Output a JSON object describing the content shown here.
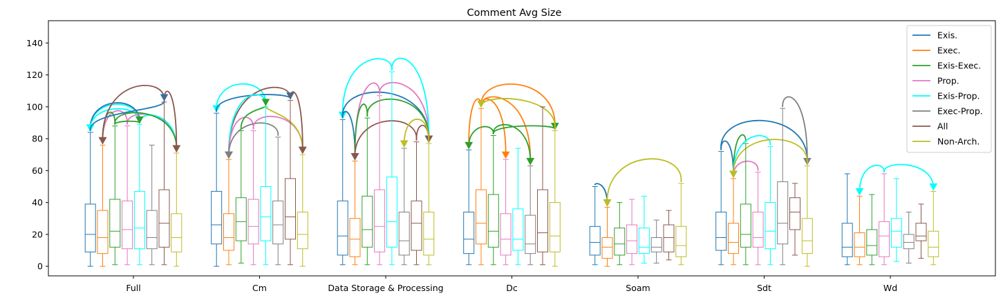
{
  "chart_data": {
    "type": "box",
    "title": "Comment Avg Size",
    "xlabel": "",
    "ylabel": "",
    "ylim": [
      -6,
      154
    ],
    "yticks": [
      0,
      20,
      40,
      60,
      80,
      100,
      120,
      140
    ],
    "grid": false,
    "legend_position": "top-right",
    "categories": [
      "Full",
      "Cm",
      "Data Storage & Processing",
      "Dc",
      "Soam",
      "Sdt",
      "Wd"
    ],
    "series": [
      {
        "name": "Exis.",
        "color": "#1f77b4",
        "boxes": [
          [
            0,
            9,
            20,
            39,
            84
          ],
          [
            0,
            14,
            26,
            47,
            96
          ],
          [
            1,
            7,
            19,
            41,
            92
          ],
          [
            1,
            8,
            17,
            34,
            73
          ],
          [
            1,
            7,
            15,
            25,
            50
          ],
          [
            1,
            10,
            18,
            34,
            72
          ],
          [
            1,
            6,
            12,
            27,
            58
          ]
        ]
      },
      {
        "name": "Exec.",
        "color": "#ff7f0e",
        "boxes": [
          [
            0,
            8,
            18,
            35,
            76
          ],
          [
            1,
            10,
            18,
            33,
            67
          ],
          [
            1,
            6,
            17,
            30,
            66
          ],
          [
            1,
            14,
            27,
            48,
            99
          ],
          [
            0,
            5,
            12,
            18,
            37
          ],
          [
            1,
            8,
            15,
            27,
            55
          ],
          [
            1,
            6,
            12,
            21,
            44
          ]
        ]
      },
      {
        "name": "Exis-Exec.",
        "color": "#2ca02c",
        "boxes": [
          [
            1,
            12,
            22,
            42,
            88
          ],
          [
            2,
            16,
            28,
            43,
            85
          ],
          [
            1,
            12,
            23,
            44,
            93
          ],
          [
            1,
            12,
            22,
            45,
            82
          ],
          [
            1,
            7,
            14,
            24,
            40
          ],
          [
            1,
            12,
            20,
            39,
            77
          ],
          [
            1,
            7,
            13,
            23,
            45
          ]
        ]
      },
      {
        "name": "Prop.",
        "color": "#e377c2",
        "boxes": [
          [
            1,
            11,
            23,
            41,
            88
          ],
          [
            1,
            14,
            25,
            42,
            85
          ],
          [
            1,
            9,
            25,
            48,
            107
          ],
          [
            1,
            7,
            17,
            33,
            67
          ],
          [
            1,
            8,
            16,
            26,
            42
          ],
          [
            1,
            12,
            18,
            34,
            59
          ],
          [
            1,
            6,
            19,
            28,
            58
          ]
        ]
      },
      {
        "name": "Exis-Prop.",
        "color": "#00ffff",
        "boxes": [
          [
            1,
            11,
            24,
            47,
            89
          ],
          [
            1,
            16,
            31,
            50,
            100
          ],
          [
            1,
            12,
            28,
            56,
            122
          ],
          [
            1,
            10,
            17,
            36,
            74
          ],
          [
            2,
            8,
            12,
            24,
            44
          ],
          [
            1,
            11,
            22,
            40,
            75
          ],
          [
            3,
            12,
            22,
            30,
            55
          ]
        ]
      },
      {
        "name": "Exec-Prop.",
        "color": "#7f7f7f",
        "boxes": [
          [
            1,
            11,
            18,
            35,
            76
          ],
          [
            1,
            14,
            26,
            41,
            81
          ],
          [
            1,
            7,
            16,
            34,
            74
          ],
          [
            1,
            8,
            14,
            32,
            63
          ],
          [
            2,
            9,
            12,
            18,
            29
          ],
          [
            1,
            14,
            27,
            53,
            99
          ],
          [
            2,
            11,
            15,
            20,
            34
          ]
        ]
      },
      {
        "name": "All",
        "color": "#8c564b",
        "boxes": [
          [
            1,
            12,
            27,
            48,
            103
          ],
          [
            1,
            17,
            31,
            55,
            104
          ],
          [
            1,
            10,
            27,
            41,
            78
          ],
          [
            1,
            9,
            21,
            48,
            100
          ],
          [
            4,
            9,
            18,
            26,
            35
          ],
          [
            7,
            23,
            34,
            43,
            52
          ],
          [
            5,
            16,
            19,
            27,
            39
          ]
        ]
      },
      {
        "name": "Non-Arch.",
        "color": "#bcbd22",
        "boxes": [
          [
            0,
            9,
            18,
            33,
            71
          ],
          [
            0,
            11,
            20,
            34,
            70
          ],
          [
            1,
            7,
            17,
            34,
            77
          ],
          [
            0,
            9,
            19,
            40,
            85
          ],
          [
            1,
            6,
            13,
            25,
            52
          ],
          [
            0,
            8,
            16,
            30,
            63
          ],
          [
            1,
            6,
            12,
            22,
            47
          ]
        ]
      }
    ],
    "arrows": [
      {
        "category": 0,
        "from": 4,
        "to": 0,
        "peak": 99,
        "color": "#00ffff"
      },
      {
        "category": 0,
        "from": 0,
        "to": 4,
        "peak": 100,
        "color": "#1f77b4"
      },
      {
        "category": 0,
        "from": 4,
        "to": 0,
        "peak": 96,
        "color": "#00ffff"
      },
      {
        "category": 0,
        "from": 3,
        "to": 1,
        "peak": 94,
        "color": "#e377c2"
      },
      {
        "category": 0,
        "from": 2,
        "to": 1,
        "peak": 93,
        "color": "#2ca02c"
      },
      {
        "category": 0,
        "from": 6,
        "to": 1,
        "peak": 108,
        "color": "#8c564b"
      },
      {
        "category": 0,
        "from": 0,
        "to": 6,
        "peak": 92,
        "color": "#1f77b4"
      },
      {
        "category": 0,
        "from": 3,
        "to": 7,
        "peak": 91,
        "color": "#e377c2"
      },
      {
        "category": 0,
        "from": 4,
        "to": 7,
        "peak": 90,
        "color": "#00ffff"
      },
      {
        "category": 0,
        "from": 2,
        "to": 7,
        "peak": 92,
        "color": "#2ca02c"
      },
      {
        "category": 0,
        "from": 2,
        "to": 4,
        "peak": 88,
        "color": "#2ca02c"
      },
      {
        "category": 0,
        "from": 6,
        "to": 7,
        "peak": 103,
        "color": "#8c564b"
      },
      {
        "category": 1,
        "from": 4,
        "to": 0,
        "peak": 112,
        "color": "#00ffff"
      },
      {
        "category": 1,
        "from": 0,
        "to": 6,
        "peak": 104,
        "color": "#1f77b4"
      },
      {
        "category": 1,
        "from": 6,
        "to": 1,
        "peak": 105,
        "color": "#8c564b"
      },
      {
        "category": 1,
        "from": 4,
        "to": 1,
        "peak": 101,
        "color": "#00ffff"
      },
      {
        "category": 1,
        "from": 3,
        "to": 1,
        "peak": 89,
        "color": "#e377c2"
      },
      {
        "category": 1,
        "from": 5,
        "to": 1,
        "peak": 86,
        "color": "#7f7f7f"
      },
      {
        "category": 1,
        "from": 2,
        "to": 4,
        "peak": 93,
        "color": "#2ca02c"
      },
      {
        "category": 1,
        "from": 3,
        "to": 7,
        "peak": 90,
        "color": "#e377c2"
      },
      {
        "category": 1,
        "from": 4,
        "to": 7,
        "peak": 88,
        "color": "#bcbd22"
      },
      {
        "category": 1,
        "from": 6,
        "to": 7,
        "peak": 102,
        "color": "#8c564b"
      },
      {
        "category": 2,
        "from": 4,
        "to": 0,
        "peak": 124,
        "color": "#00ffff"
      },
      {
        "category": 2,
        "from": 0,
        "to": 1,
        "peak": 91,
        "color": "#1f77b4"
      },
      {
        "category": 2,
        "from": 0,
        "to": 7,
        "peak": 106,
        "color": "#1f77b4"
      },
      {
        "category": 2,
        "from": 3,
        "to": 1,
        "peak": 107,
        "color": "#e377c2"
      },
      {
        "category": 2,
        "from": 3,
        "to": 7,
        "peak": 109,
        "color": "#e377c2"
      },
      {
        "category": 2,
        "from": 4,
        "to": 7,
        "peak": 122,
        "color": "#00ffff"
      },
      {
        "category": 2,
        "from": 2,
        "to": 1,
        "peak": 96,
        "color": "#2ca02c"
      },
      {
        "category": 2,
        "from": 2,
        "to": 7,
        "peak": 101,
        "color": "#2ca02c"
      },
      {
        "category": 2,
        "from": 6,
        "to": 1,
        "peak": 88,
        "color": "#8c564b"
      },
      {
        "category": 2,
        "from": 6,
        "to": 7,
        "peak": 86,
        "color": "#8c564b"
      },
      {
        "category": 2,
        "from": 7,
        "to": 5,
        "peak": 90,
        "color": "#bcbd22"
      },
      {
        "category": 3,
        "from": 1,
        "to": 0,
        "peak": 99,
        "color": "#ff7f0e"
      },
      {
        "category": 3,
        "from": 1,
        "to": 3,
        "peak": 98,
        "color": "#ff7f0e"
      },
      {
        "category": 3,
        "from": 1,
        "to": 5,
        "peak": 99,
        "color": "#ff7f0e"
      },
      {
        "category": 3,
        "from": 1,
        "to": 7,
        "peak": 111,
        "color": "#ff7f0e"
      },
      {
        "category": 3,
        "from": 2,
        "to": 0,
        "peak": 84,
        "color": "#2ca02c"
      },
      {
        "category": 3,
        "from": 2,
        "to": 5,
        "peak": 84,
        "color": "#2ca02c"
      },
      {
        "category": 3,
        "from": 2,
        "to": 7,
        "peak": 85,
        "color": "#2ca02c"
      },
      {
        "category": 3,
        "from": 7,
        "to": 1,
        "peak": 101,
        "color": "#bcbd22"
      },
      {
        "category": 4,
        "from": 0,
        "to": 1,
        "peak": 47,
        "color": "#1f77b4"
      },
      {
        "category": 4,
        "from": 7,
        "to": 1,
        "peak": 64,
        "color": "#bcbd22"
      },
      {
        "category": 5,
        "from": 0,
        "to": 1,
        "peak": 74,
        "color": "#1f77b4"
      },
      {
        "category": 5,
        "from": 0,
        "to": 7,
        "peak": 89,
        "color": "#1f77b4"
      },
      {
        "category": 5,
        "from": 2,
        "to": 1,
        "peak": 77,
        "color": "#2ca02c"
      },
      {
        "category": 5,
        "from": 3,
        "to": 1,
        "peak": 63,
        "color": "#e377c2"
      },
      {
        "category": 5,
        "from": 4,
        "to": 1,
        "peak": 77,
        "color": "#00ffff"
      },
      {
        "category": 5,
        "from": 5,
        "to": 7,
        "peak": 99,
        "color": "#7f7f7f"
      },
      {
        "category": 5,
        "from": 7,
        "to": 1,
        "peak": 77,
        "color": "#bcbd22"
      },
      {
        "category": 6,
        "from": 3,
        "to": 1,
        "peak": 59,
        "color": "#00ffff"
      },
      {
        "category": 6,
        "from": 3,
        "to": 7,
        "peak": 60,
        "color": "#00ffff"
      }
    ]
  }
}
